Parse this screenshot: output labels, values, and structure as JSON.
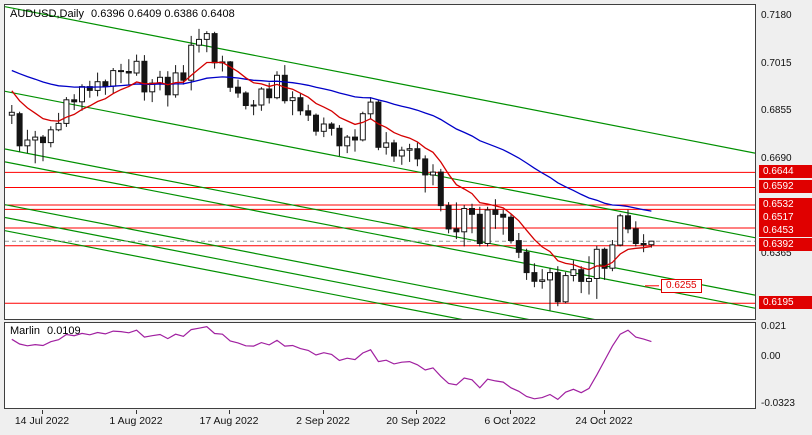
{
  "title": {
    "symbol": "AUDUSD,Daily",
    "ohlc": "0.6396 0.6409 0.6386 0.6408"
  },
  "indicator_header": {
    "name": "Marlin",
    "value": "0.0109"
  },
  "colors": {
    "bull": "#ffffff",
    "bear": "#151515",
    "ma_fast": "#d40000",
    "ma_slow": "#0000c8",
    "trendline": "#009000",
    "level": "#ff0000",
    "indicator_line": "#a020a0",
    "label_box_bg": "#e00000",
    "label_box_text": "#ffffff"
  },
  "chart_data": {
    "type": "candlestick",
    "title": "AUDUSD,Daily 0.6396 0.6409 0.6386 0.6408",
    "symbol": "AUDUSD",
    "timeframe": "Daily",
    "x_axis_labels": [
      "14 Jul 2022",
      "1 Aug 2022",
      "17 Aug 2022",
      "2 Sep 2022",
      "20 Sep 2022",
      "6 Oct 2022",
      "24 Oct 2022"
    ],
    "x_tick_bar_indices": [
      4,
      16,
      28,
      40,
      52,
      64,
      76
    ],
    "y_axis_labels": [
      "0.7180",
      "0.7015",
      "0.6855",
      "0.6690",
      "0.6365"
    ],
    "price_lines": [
      "0.6644",
      "0.6592",
      "0.6532",
      "0.6517",
      "0.6453",
      "0.6392",
      "0.6195"
    ],
    "floating_price_label": "0.6255",
    "last_price": 0.6408,
    "price_top": 0.7218,
    "price_bottom": 0.6141,
    "bar_start_x": 6.8,
    "bar_spacing": 7.8,
    "candles": {
      "open": [
        0.684,
        0.6845,
        0.6735,
        0.6755,
        0.6765,
        0.6746,
        0.679,
        0.6812,
        0.6893,
        0.6886,
        0.6938,
        0.6925,
        0.6955,
        0.694,
        0.6993,
        0.699,
        0.6985,
        0.7025,
        0.692,
        0.695,
        0.697,
        0.691,
        0.6985,
        0.696,
        0.708,
        0.71,
        0.712,
        0.702,
        0.7023,
        0.6936,
        0.6916,
        0.6873,
        0.6875,
        0.693,
        0.69,
        0.6977,
        0.689,
        0.69,
        0.6855,
        0.684,
        0.6785,
        0.681,
        0.6795,
        0.6735,
        0.6765,
        0.6755,
        0.6845,
        0.6885,
        0.673,
        0.6745,
        0.67,
        0.672,
        0.6725,
        0.669,
        0.6635,
        0.6645,
        0.653,
        0.645,
        0.644,
        0.652,
        0.65,
        0.64,
        0.6515,
        0.65,
        0.649,
        0.641,
        0.637,
        0.63,
        0.627,
        0.6275,
        0.63,
        0.62,
        0.629,
        0.631,
        0.627,
        0.628,
        0.638,
        0.6315,
        0.6395,
        0.6495,
        0.645,
        0.64,
        0.6396
      ],
      "high": [
        0.6875,
        0.6852,
        0.679,
        0.6786,
        0.6772,
        0.6802,
        0.6848,
        0.6902,
        0.6912,
        0.6946,
        0.6958,
        0.6986,
        0.6962,
        0.7002,
        0.7016,
        0.7032,
        0.7048,
        0.7046,
        0.6964,
        0.6992,
        0.6991,
        0.7012,
        0.7012,
        0.7112,
        0.7136,
        0.7128,
        0.7126,
        0.7044,
        0.7026,
        0.6962,
        0.6922,
        0.6892,
        0.6936,
        0.6952,
        0.6991,
        0.7012,
        0.6922,
        0.6916,
        0.6876,
        0.6846,
        0.6832,
        0.6816,
        0.6806,
        0.6772,
        0.6792,
        0.6852,
        0.6902,
        0.6892,
        0.6782,
        0.6756,
        0.6732,
        0.6742,
        0.6746,
        0.6702,
        0.6672,
        0.6656,
        0.6542,
        0.6541,
        0.6532,
        0.6536,
        0.6526,
        0.6526,
        0.6552,
        0.6516,
        0.6502,
        0.6436,
        0.6382,
        0.6332,
        0.6312,
        0.6316,
        0.6322,
        0.6302,
        0.6342,
        0.6322,
        0.6356,
        0.6392,
        0.6386,
        0.6412,
        0.6502,
        0.6516,
        0.6476,
        0.6432,
        0.6409
      ],
      "low": [
        0.681,
        0.6715,
        0.671,
        0.6675,
        0.6682,
        0.673,
        0.6785,
        0.68,
        0.6858,
        0.6855,
        0.69,
        0.6905,
        0.691,
        0.6915,
        0.695,
        0.6945,
        0.6975,
        0.689,
        0.6885,
        0.6925,
        0.687,
        0.69,
        0.6945,
        0.6925,
        0.7055,
        0.7056,
        0.7,
        0.699,
        0.692,
        0.69,
        0.686,
        0.684,
        0.6855,
        0.688,
        0.6895,
        0.688,
        0.684,
        0.684,
        0.682,
        0.677,
        0.6765,
        0.677,
        0.67,
        0.671,
        0.6715,
        0.675,
        0.6825,
        0.672,
        0.6705,
        0.668,
        0.667,
        0.668,
        0.6665,
        0.6575,
        0.66,
        0.651,
        0.6435,
        0.6415,
        0.639,
        0.6435,
        0.639,
        0.639,
        0.645,
        0.643,
        0.64,
        0.635,
        0.6275,
        0.625,
        0.6245,
        0.617,
        0.6185,
        0.6195,
        0.627,
        0.623,
        0.6225,
        0.621,
        0.6275,
        0.6305,
        0.639,
        0.6435,
        0.639,
        0.637,
        0.6386
      ],
      "close": [
        0.685,
        0.6735,
        0.6755,
        0.6765,
        0.6746,
        0.679,
        0.6812,
        0.6893,
        0.6886,
        0.6938,
        0.6925,
        0.6955,
        0.694,
        0.6993,
        0.699,
        0.6985,
        0.7025,
        0.692,
        0.695,
        0.697,
        0.691,
        0.6985,
        0.696,
        0.708,
        0.71,
        0.712,
        0.702,
        0.7023,
        0.6936,
        0.6916,
        0.6873,
        0.6875,
        0.693,
        0.69,
        0.6977,
        0.689,
        0.69,
        0.6855,
        0.684,
        0.6785,
        0.681,
        0.6795,
        0.6735,
        0.6765,
        0.6755,
        0.6845,
        0.6885,
        0.673,
        0.6745,
        0.67,
        0.672,
        0.6725,
        0.669,
        0.6635,
        0.6645,
        0.653,
        0.645,
        0.644,
        0.652,
        0.65,
        0.64,
        0.6515,
        0.65,
        0.649,
        0.641,
        0.637,
        0.63,
        0.627,
        0.6275,
        0.63,
        0.62,
        0.629,
        0.631,
        0.627,
        0.628,
        0.638,
        0.6315,
        0.6395,
        0.6495,
        0.645,
        0.64,
        0.6396,
        0.6408
      ]
    },
    "trendlines": [
      [
        0.7212,
        0.671
      ],
      [
        0.6922,
        0.642
      ],
      [
        0.6724,
        0.6223
      ],
      [
        0.668,
        0.6178
      ],
      [
        0.6533,
        0.6032
      ],
      [
        0.6489,
        0.5988
      ],
      [
        0.6444,
        0.5944
      ]
    ],
    "ma_fast": {
      "period": 10,
      "seed": 0.694
    },
    "ma_slow": {
      "period": 45,
      "seed": 0.7
    },
    "indicator": {
      "name": "Marlin",
      "current_value": 0.0109,
      "axis_labels": [
        "0.021",
        "0.00",
        "-0.0323"
      ],
      "value_top": 0.0238,
      "value_bottom": -0.0352,
      "values": [
        0.0125,
        0.0092,
        0.008,
        0.0088,
        0.0082,
        0.0108,
        0.0122,
        0.0158,
        0.015,
        0.0166,
        0.0156,
        0.0172,
        0.0162,
        0.0182,
        0.0178,
        0.017,
        0.0188,
        0.014,
        0.015,
        0.0158,
        0.013,
        0.016,
        0.0146,
        0.0192,
        0.0202,
        0.0212,
        0.0165,
        0.016,
        0.0114,
        0.01,
        0.008,
        0.0078,
        0.0102,
        0.0086,
        0.0118,
        0.0078,
        0.0082,
        0.006,
        0.0048,
        0.0016,
        0.0032,
        0.002,
        -0.0022,
        -0.0006,
        -0.0016,
        0.003,
        0.0052,
        -0.003,
        -0.002,
        -0.0046,
        -0.0034,
        -0.003,
        -0.0052,
        -0.0088,
        -0.0074,
        -0.0132,
        -0.0182,
        -0.0192,
        -0.0144,
        -0.0156,
        -0.0212,
        -0.0152,
        -0.0164,
        -0.0172,
        -0.0212,
        -0.0236,
        -0.0272,
        -0.0288,
        -0.028,
        -0.0258,
        -0.0292,
        -0.0242,
        -0.0222,
        -0.0246,
        -0.0216,
        -0.0122,
        -0.0022,
        0.0078,
        0.016,
        0.0188,
        0.014,
        0.0126,
        0.0109
      ]
    }
  }
}
